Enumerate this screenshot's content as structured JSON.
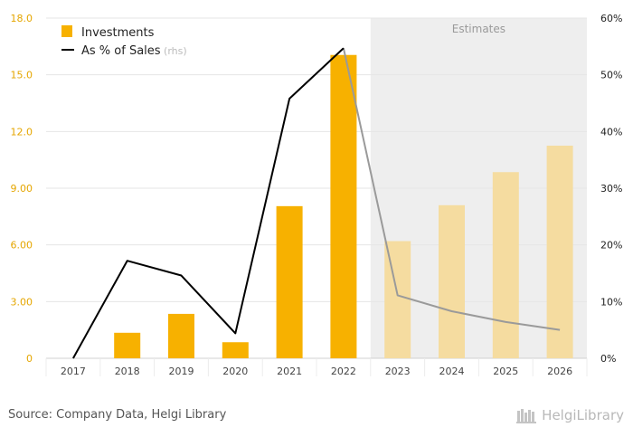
{
  "chart_data": {
    "type": "bar",
    "categories": [
      "2017",
      "2018",
      "2019",
      "2020",
      "2021",
      "2022",
      "2023",
      "2024",
      "2025",
      "2026"
    ],
    "series": [
      {
        "name": "Investments",
        "type": "bar",
        "axis": "left",
        "values": [
          0,
          1.35,
          2.35,
          0.85,
          8.05,
          16.05,
          6.2,
          8.1,
          9.85,
          11.25
        ]
      },
      {
        "name": "As % of Sales",
        "type": "line",
        "axis": "right",
        "values": [
          0,
          17.2,
          14.6,
          4.4,
          45.8,
          54.7,
          11.1,
          8.3,
          6.4,
          5.0
        ]
      }
    ],
    "legend": {
      "items": [
        {
          "label": "Investments",
          "suffix": ""
        },
        {
          "label": "As % of Sales",
          "suffix": " (rhs)"
        }
      ],
      "placement": "top-left"
    },
    "estimate_from": "2023",
    "estimate_label": "Estimates",
    "ylim_left": [
      0,
      18
    ],
    "yticks_left": [
      "0",
      "3.00",
      "6.00",
      "9.00",
      "12.0",
      "15.0",
      "18.0"
    ],
    "ylim_right": [
      0,
      60
    ],
    "yticks_right": [
      "0%",
      "10%",
      "20%",
      "30%",
      "40%",
      "50%",
      "60%"
    ],
    "grid": true,
    "xlabel": "",
    "ylabel": ""
  },
  "colors": {
    "bar": "#f7b100",
    "bar_estimate": "#f5dca0",
    "line": "#000000",
    "line_estimate": "#9a9a9a",
    "estimate_shading": "#eeeeee",
    "left_tick_text": "#e5a600",
    "grid": "#e6e6e6"
  },
  "footer": {
    "source": "Source: Company Data, Helgi Library",
    "brand": "HelgiLibrary",
    "brand_icon": "library-shelf-icon"
  }
}
